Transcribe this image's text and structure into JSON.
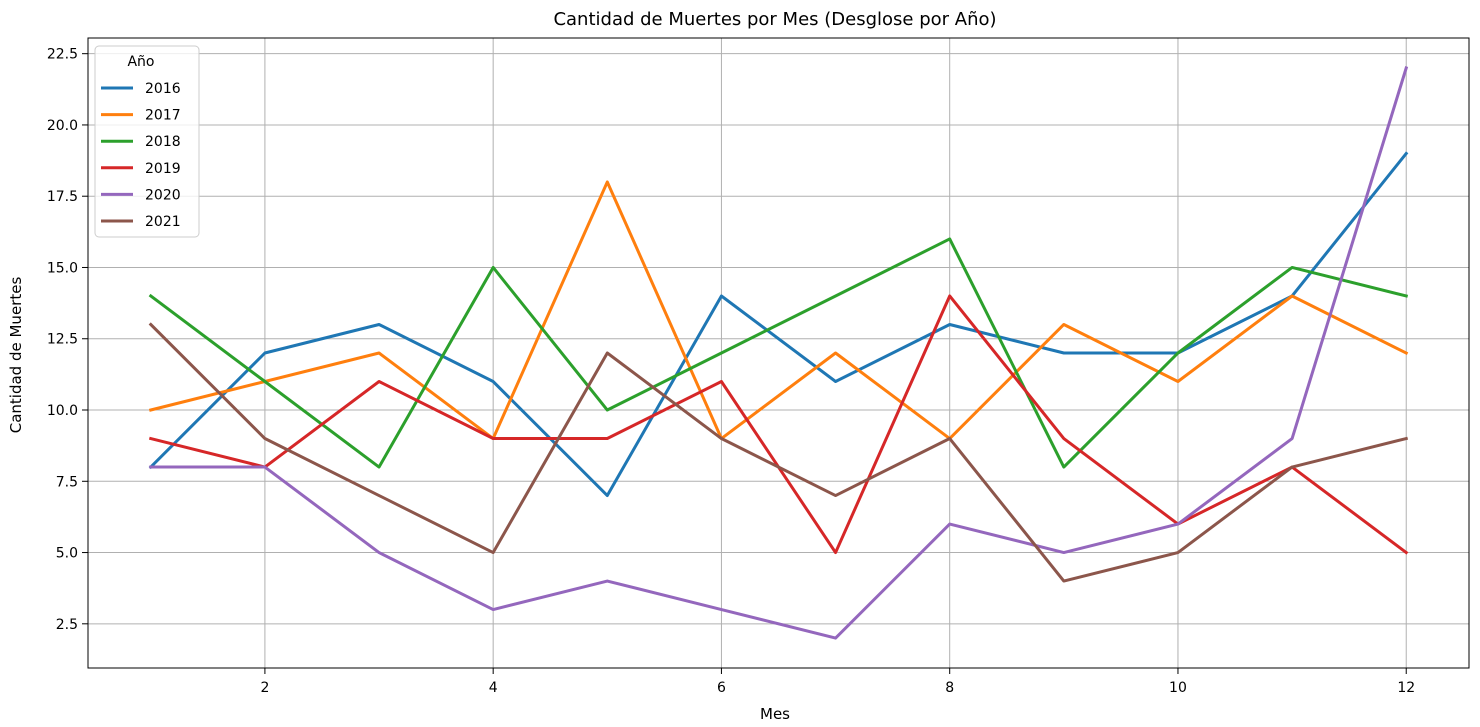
{
  "chart_data": {
    "type": "line",
    "title": "Cantidad de Muertes por Mes (Desglose por Año)",
    "xlabel": "Mes",
    "ylabel": "Cantidad de Muertes",
    "x": [
      1,
      2,
      3,
      4,
      5,
      6,
      7,
      8,
      9,
      10,
      11,
      12
    ],
    "xlim": [
      0.45,
      12.55
    ],
    "ylim": [
      0.95,
      23.05
    ],
    "xticks": [
      2,
      4,
      6,
      8,
      10,
      12
    ],
    "yticks": [
      2.5,
      5.0,
      7.5,
      10.0,
      12.5,
      15.0,
      17.5,
      20.0,
      22.5
    ],
    "xtick_labels": [
      "2",
      "4",
      "6",
      "8",
      "10",
      "12"
    ],
    "ytick_labels": [
      "2.5",
      "5.0",
      "7.5",
      "10.0",
      "12.5",
      "15.0",
      "17.5",
      "20.0",
      "22.5"
    ],
    "grid": true,
    "legend": {
      "title": "Año",
      "placement": "top-left"
    },
    "series": [
      {
        "name": "2016",
        "color": "#1f77b4",
        "values": [
          8,
          12,
          13,
          11,
          7,
          14,
          11,
          13,
          12,
          12,
          14,
          19
        ]
      },
      {
        "name": "2017",
        "color": "#ff7f0e",
        "values": [
          10,
          11,
          12,
          9,
          18,
          9,
          12,
          9,
          13,
          11,
          14,
          12
        ]
      },
      {
        "name": "2018",
        "color": "#2ca02c",
        "values": [
          14,
          11,
          8,
          15,
          10,
          12,
          14,
          16,
          8,
          12,
          15,
          14
        ]
      },
      {
        "name": "2019",
        "color": "#d62728",
        "values": [
          9,
          8,
          11,
          9,
          9,
          11,
          5,
          14,
          9,
          6,
          8,
          5
        ]
      },
      {
        "name": "2020",
        "color": "#9467bd",
        "values": [
          8,
          8,
          5,
          3,
          4,
          3,
          2,
          6,
          5,
          6,
          9,
          22
        ]
      },
      {
        "name": "2021",
        "color": "#8c564b",
        "values": [
          13,
          9,
          7,
          5,
          12,
          9,
          7,
          9,
          4,
          5,
          8,
          9
        ]
      }
    ]
  }
}
